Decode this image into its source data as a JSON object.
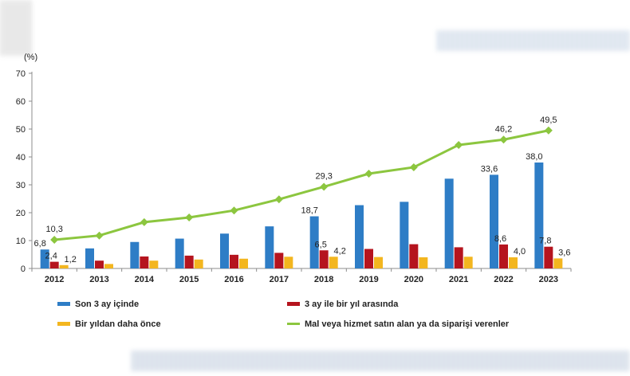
{
  "colors": {
    "series_1": "#2e7dc6",
    "series_2": "#b5141e",
    "series_3": "#f3b61f",
    "series_4": "#8cc63f",
    "axis": "#8c8c8c"
  },
  "chart_data": {
    "type": "bar",
    "title": "",
    "xlabel": "",
    "ylabel": "(%)",
    "ylim": [
      0,
      70
    ],
    "yticks": [
      0,
      10,
      20,
      30,
      40,
      50,
      60,
      70
    ],
    "categories": [
      "2012",
      "2013",
      "2014",
      "2015",
      "2016",
      "2017",
      "2018",
      "2019",
      "2020",
      "2021",
      "2022",
      "2023"
    ],
    "grid": false,
    "legend_position": "bottom",
    "series": [
      {
        "name": "Son 3 ay içinde",
        "kind": "bar",
        "values": [
          6.8,
          7.2,
          9.5,
          10.7,
          12.5,
          15.1,
          18.7,
          22.7,
          23.9,
          32.2,
          33.6,
          38.0
        ],
        "labels": [
          "6,8",
          "",
          "",
          "",
          "",
          "",
          "18,7",
          "",
          "",
          "",
          "33,6",
          "38,0"
        ]
      },
      {
        "name": "3 ay ile bir yıl arasında",
        "kind": "bar",
        "values": [
          2.4,
          2.8,
          4.3,
          4.6,
          4.9,
          5.6,
          6.5,
          7.0,
          8.7,
          7.6,
          8.6,
          7.8
        ],
        "labels": [
          "2,4",
          "",
          "",
          "",
          "",
          "",
          "6,5",
          "",
          "",
          "",
          "8,6",
          "7,8"
        ]
      },
      {
        "name": "Bir yıldan daha önce",
        "kind": "bar",
        "values": [
          1.2,
          1.6,
          2.8,
          3.2,
          3.5,
          4.2,
          4.2,
          4.1,
          4.0,
          4.2,
          4.0,
          3.6
        ],
        "labels": [
          "1,2",
          "",
          "",
          "",
          "",
          "",
          "4,2",
          "",
          "",
          "",
          "4,0",
          "3,6"
        ]
      },
      {
        "name": "Mal veya hizmet satın alan ya da siparişi verenler",
        "kind": "line",
        "values": [
          10.3,
          11.8,
          16.6,
          18.3,
          20.8,
          24.8,
          29.3,
          34.0,
          36.3,
          44.3,
          46.2,
          49.5
        ],
        "labels": [
          "10,3",
          "",
          "",
          "",
          "",
          "",
          "29,3",
          "",
          "",
          "",
          "46,2",
          "49,5"
        ]
      }
    ]
  }
}
